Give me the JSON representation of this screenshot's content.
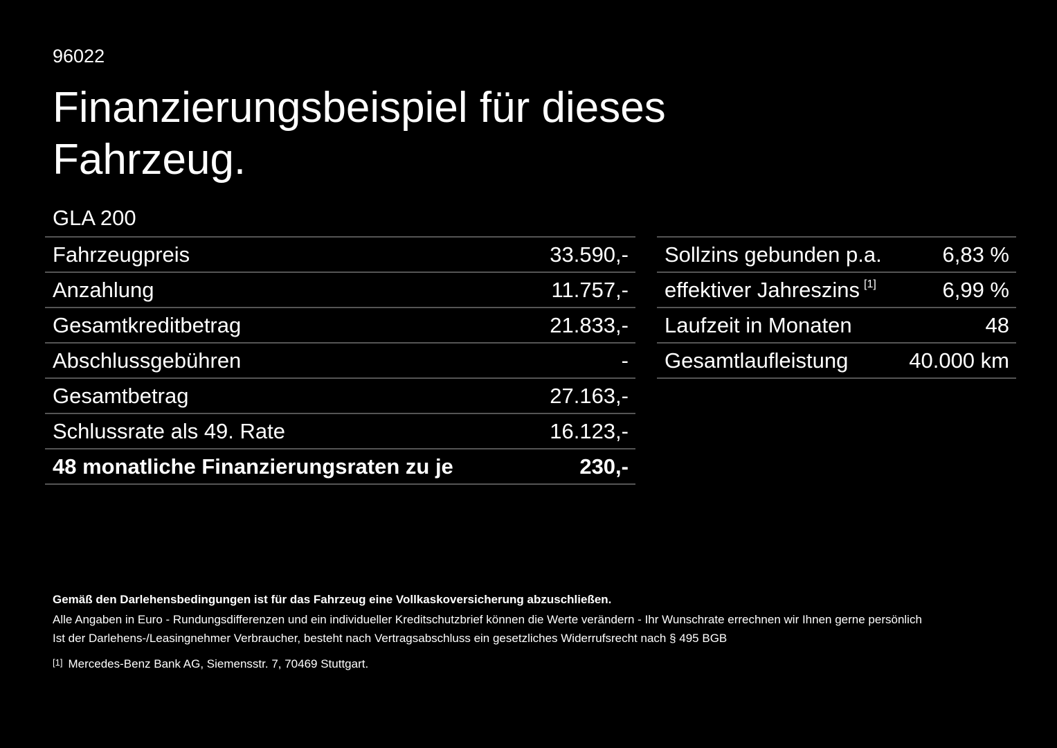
{
  "code": "96022",
  "title": "Finanzierungsbeispiel für dieses Fahrzeug.",
  "model": "GLA 200",
  "left_table": {
    "rows": [
      {
        "label": "Fahrzeugpreis",
        "value": "33.590,-"
      },
      {
        "label": "Anzahlung",
        "value": "11.757,-"
      },
      {
        "label": "Gesamtkreditbetrag",
        "value": "21.833,-"
      },
      {
        "label": "Abschlussgebühren",
        "value": "-"
      },
      {
        "label": "Gesamtbetrag",
        "value": "27.163,-"
      },
      {
        "label": "Schlussrate als 49. Rate",
        "value": "16.123,-"
      },
      {
        "label": "48 monatliche Finanzierungsraten zu je",
        "value": "230,-",
        "bold": true
      }
    ]
  },
  "right_table": {
    "rows": [
      {
        "label": "Sollzins gebunden p.a.",
        "value": "6,83 %"
      },
      {
        "label": "effektiver Jahreszins",
        "note": "[1]",
        "value": "6,99 %"
      },
      {
        "label": "Laufzeit in Monaten",
        "value": "48"
      },
      {
        "label": "Gesamtlaufleistung",
        "value": "40.000 km"
      }
    ]
  },
  "notes": {
    "bold": "Gemäß den Darlehensbedingungen ist für das Fahrzeug eine Vollkaskoversicherung abzuschließen.",
    "lines": [
      "Alle Angaben in Euro - Rundungsdifferenzen und ein individueller Kreditschutzbrief können die Werte verändern - Ihr Wunschrate errechnen wir Ihnen gerne persönlich",
      "Ist der Darlehens-/Leasingnehmer Verbraucher, besteht nach Vertragsabschluss ein gesetzliches Widerrufsrecht nach § 495 BGB"
    ],
    "footnote": {
      "marker": "[1]",
      "text": "Mercedes-Benz Bank AG, Siemensstr. 7, 70469 Stuttgart."
    }
  }
}
